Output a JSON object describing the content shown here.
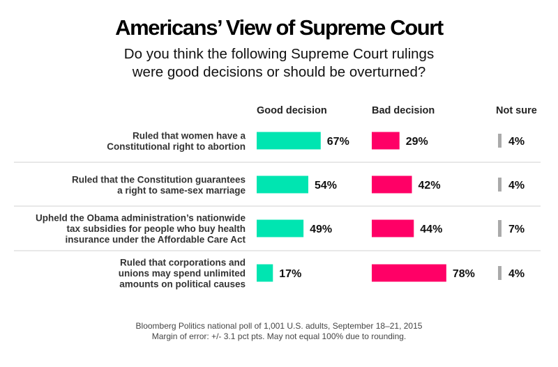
{
  "chart_data": {
    "type": "bar",
    "title": "Americans’ View of Supreme Court",
    "subtitle_lines": [
      "Do you think the following Supreme Court rulings",
      "were good decisions or should be overturned?"
    ],
    "categories": [
      [
        "Ruled that women have a",
        "Constitutional right to abortion"
      ],
      [
        "Ruled that the Constitution guarantees",
        "a right to same-sex marriage"
      ],
      [
        "Upheld the Obama administration’s nationwide",
        "tax subsidies for people who buy health",
        "insurance under the Affordable Care Act"
      ],
      [
        "Ruled that corporations and",
        "unions may spend unlimited",
        "amounts on political causes"
      ]
    ],
    "series": [
      {
        "name": "Good decision",
        "values": [
          67,
          54,
          49,
          17
        ],
        "color": "#00e5b1"
      },
      {
        "name": "Bad decision",
        "values": [
          29,
          42,
          44,
          78
        ],
        "color": "#ff0066"
      },
      {
        "name": "Not sure",
        "values": [
          4,
          4,
          7,
          4
        ],
        "color": "#aaaaaa"
      }
    ],
    "value_suffix": "%",
    "source_lines": [
      "Bloomberg Politics national poll of 1,001 U.S. adults, September 18–21, 2015",
      "Margin of error: +/- 3.1 pct pts. May not equal 100% due to rounding."
    ]
  }
}
